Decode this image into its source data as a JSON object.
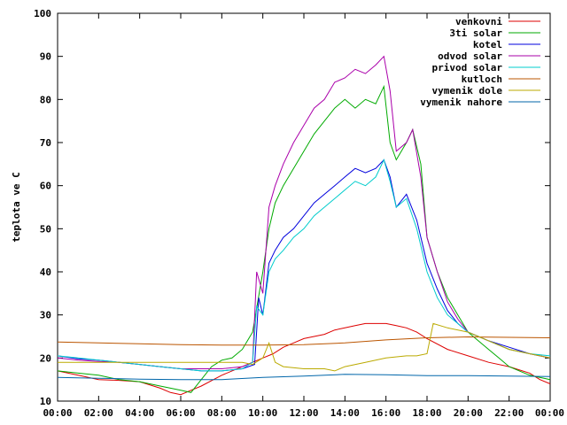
{
  "chart_data": {
    "type": "line",
    "title": "",
    "xlabel": "",
    "ylabel": "teplota ve C",
    "xlim": [
      0,
      24
    ],
    "ylim": [
      10,
      100
    ],
    "xticks": [
      {
        "v": 0,
        "label": "00:00"
      },
      {
        "v": 2,
        "label": "02:00"
      },
      {
        "v": 4,
        "label": "04:00"
      },
      {
        "v": 6,
        "label": "06:00"
      },
      {
        "v": 8,
        "label": "08:00"
      },
      {
        "v": 10,
        "label": "10:00"
      },
      {
        "v": 12,
        "label": "12:00"
      },
      {
        "v": 14,
        "label": "14:00"
      },
      {
        "v": 16,
        "label": "16:00"
      },
      {
        "v": 18,
        "label": "18:00"
      },
      {
        "v": 20,
        "label": "20:00"
      },
      {
        "v": 22,
        "label": "22:00"
      },
      {
        "v": 24,
        "label": "00:00"
      }
    ],
    "yticks": [
      {
        "v": 10,
        "label": "10"
      },
      {
        "v": 20,
        "label": "20"
      },
      {
        "v": 30,
        "label": "30"
      },
      {
        "v": 40,
        "label": "40"
      },
      {
        "v": 50,
        "label": "50"
      },
      {
        "v": 60,
        "label": "60"
      },
      {
        "v": 70,
        "label": "70"
      },
      {
        "v": 80,
        "label": "80"
      },
      {
        "v": 90,
        "label": "90"
      },
      {
        "v": 100,
        "label": "100"
      }
    ],
    "grid": false,
    "legend_position": "top-right",
    "series": [
      {
        "name": "venkovni",
        "color": "#dd0000",
        "points": [
          [
            0,
            17
          ],
          [
            1,
            16
          ],
          [
            2,
            15
          ],
          [
            3,
            14.8
          ],
          [
            4,
            14.5
          ],
          [
            5,
            13
          ],
          [
            5.5,
            12
          ],
          [
            6,
            11.5
          ],
          [
            6.5,
            12.5
          ],
          [
            7,
            13.5
          ],
          [
            8,
            16
          ],
          [
            9,
            18
          ],
          [
            9.5,
            19
          ],
          [
            10,
            20
          ],
          [
            10.5,
            21
          ],
          [
            11,
            22.5
          ],
          [
            11.5,
            23.5
          ],
          [
            12,
            24.5
          ],
          [
            12.5,
            25
          ],
          [
            13,
            25.5
          ],
          [
            13.5,
            26.5
          ],
          [
            14,
            27
          ],
          [
            14.5,
            27.5
          ],
          [
            15,
            28
          ],
          [
            15.5,
            28
          ],
          [
            16,
            28
          ],
          [
            16.5,
            27.5
          ],
          [
            17,
            27
          ],
          [
            17.5,
            26
          ],
          [
            18,
            24.5
          ],
          [
            19,
            22
          ],
          [
            20,
            20.5
          ],
          [
            21,
            19
          ],
          [
            22,
            18
          ],
          [
            23,
            16.5
          ],
          [
            23.5,
            15
          ],
          [
            24,
            14
          ]
        ]
      },
      {
        "name": "3ti solar",
        "color": "#00aa00",
        "points": [
          [
            0,
            17
          ],
          [
            1,
            16.5
          ],
          [
            2,
            16
          ],
          [
            3,
            15
          ],
          [
            4,
            14.5
          ],
          [
            5,
            13.5
          ],
          [
            6,
            12.5
          ],
          [
            6.5,
            12
          ],
          [
            7,
            15
          ],
          [
            7.5,
            18
          ],
          [
            8,
            19.5
          ],
          [
            8.5,
            20
          ],
          [
            9,
            22
          ],
          [
            9.5,
            26
          ],
          [
            10,
            40
          ],
          [
            10.3,
            50
          ],
          [
            10.6,
            56
          ],
          [
            11,
            60
          ],
          [
            11.5,
            64
          ],
          [
            12,
            68
          ],
          [
            12.5,
            72
          ],
          [
            13,
            75
          ],
          [
            13.5,
            78
          ],
          [
            14,
            80
          ],
          [
            14.5,
            78
          ],
          [
            15,
            80
          ],
          [
            15.5,
            79
          ],
          [
            15.9,
            83
          ],
          [
            16.2,
            70
          ],
          [
            16.5,
            66
          ],
          [
            17,
            70
          ],
          [
            17.3,
            73
          ],
          [
            17.7,
            65
          ],
          [
            18,
            48
          ],
          [
            18.5,
            40
          ],
          [
            19,
            34
          ],
          [
            19.5,
            30
          ],
          [
            20,
            26
          ],
          [
            20.5,
            24
          ],
          [
            21,
            22
          ],
          [
            21.5,
            20
          ],
          [
            22,
            18
          ],
          [
            23,
            16
          ],
          [
            24,
            15
          ]
        ]
      },
      {
        "name": "kotel",
        "color": "#0000dd",
        "points": [
          [
            0,
            20.5
          ],
          [
            1,
            19.8
          ],
          [
            2,
            19.5
          ],
          [
            3,
            19
          ],
          [
            4,
            18.5
          ],
          [
            5,
            18
          ],
          [
            6,
            17.5
          ],
          [
            7,
            17
          ],
          [
            8,
            17
          ],
          [
            9,
            17.5
          ],
          [
            9.6,
            18.5
          ],
          [
            9.8,
            34
          ],
          [
            10,
            30
          ],
          [
            10.3,
            42
          ],
          [
            10.6,
            45
          ],
          [
            11,
            48
          ],
          [
            11.5,
            50
          ],
          [
            12,
            53
          ],
          [
            12.5,
            56
          ],
          [
            13,
            58
          ],
          [
            13.5,
            60
          ],
          [
            14,
            62
          ],
          [
            14.5,
            64
          ],
          [
            15,
            63
          ],
          [
            15.5,
            64
          ],
          [
            15.9,
            66
          ],
          [
            16.2,
            62
          ],
          [
            16.5,
            55
          ],
          [
            17,
            58
          ],
          [
            17.5,
            52
          ],
          [
            18,
            42
          ],
          [
            18.5,
            36
          ],
          [
            19,
            31
          ],
          [
            19.5,
            28
          ],
          [
            20,
            26
          ],
          [
            21,
            24
          ],
          [
            22,
            22.5
          ],
          [
            23,
            21
          ],
          [
            24,
            20
          ]
        ]
      },
      {
        "name": "odvod solar",
        "color": "#aa00aa",
        "points": [
          [
            0,
            20
          ],
          [
            1,
            19.5
          ],
          [
            2,
            19.2
          ],
          [
            3,
            19
          ],
          [
            4,
            18.5
          ],
          [
            5,
            18
          ],
          [
            6,
            17.5
          ],
          [
            7,
            17.5
          ],
          [
            8,
            17.5
          ],
          [
            9,
            18
          ],
          [
            9.5,
            19
          ],
          [
            9.7,
            40
          ],
          [
            10,
            35
          ],
          [
            10.3,
            55
          ],
          [
            10.6,
            60
          ],
          [
            11,
            65
          ],
          [
            11.5,
            70
          ],
          [
            12,
            74
          ],
          [
            12.5,
            78
          ],
          [
            13,
            80
          ],
          [
            13.5,
            84
          ],
          [
            14,
            85
          ],
          [
            14.5,
            87
          ],
          [
            15,
            86
          ],
          [
            15.5,
            88
          ],
          [
            15.9,
            90
          ],
          [
            16.2,
            82
          ],
          [
            16.5,
            68
          ],
          [
            17,
            70
          ],
          [
            17.3,
            73
          ],
          [
            17.7,
            62
          ],
          [
            18,
            48
          ],
          [
            18.5,
            40
          ],
          [
            19,
            33
          ],
          [
            19.5,
            29
          ],
          [
            20,
            26
          ],
          [
            21,
            24
          ],
          [
            22,
            22
          ],
          [
            23,
            21
          ],
          [
            24,
            20
          ]
        ]
      },
      {
        "name": "privod solar",
        "color": "#00cccc",
        "points": [
          [
            0,
            20.5
          ],
          [
            1,
            20
          ],
          [
            2,
            19.5
          ],
          [
            3,
            19
          ],
          [
            4,
            18.5
          ],
          [
            5,
            18
          ],
          [
            6,
            17.5
          ],
          [
            7,
            17
          ],
          [
            8,
            17
          ],
          [
            9,
            17.5
          ],
          [
            9.5,
            19
          ],
          [
            9.7,
            32
          ],
          [
            10,
            30
          ],
          [
            10.3,
            40
          ],
          [
            10.6,
            43
          ],
          [
            11,
            45
          ],
          [
            11.5,
            48
          ],
          [
            12,
            50
          ],
          [
            12.5,
            53
          ],
          [
            13,
            55
          ],
          [
            13.5,
            57
          ],
          [
            14,
            59
          ],
          [
            14.5,
            61
          ],
          [
            15,
            60
          ],
          [
            15.5,
            62
          ],
          [
            15.9,
            66
          ],
          [
            16.2,
            61
          ],
          [
            16.5,
            55
          ],
          [
            17,
            57
          ],
          [
            17.5,
            50
          ],
          [
            18,
            40
          ],
          [
            18.5,
            34
          ],
          [
            19,
            30
          ],
          [
            19.5,
            28
          ],
          [
            20,
            26
          ],
          [
            21,
            24
          ],
          [
            22,
            22
          ],
          [
            23,
            21
          ],
          [
            24,
            20.5
          ]
        ]
      },
      {
        "name": "kutloch",
        "color": "#bb5500",
        "points": [
          [
            0,
            23.7
          ],
          [
            2,
            23.5
          ],
          [
            4,
            23.3
          ],
          [
            6,
            23.1
          ],
          [
            8,
            23
          ],
          [
            10,
            23
          ],
          [
            12,
            23.1
          ],
          [
            14,
            23.5
          ],
          [
            16,
            24.2
          ],
          [
            18,
            24.7
          ],
          [
            20,
            24.9
          ],
          [
            22,
            24.8
          ],
          [
            24,
            24.7
          ]
        ]
      },
      {
        "name": "vymenik dole",
        "color": "#bbaa00",
        "points": [
          [
            0,
            19
          ],
          [
            2,
            19
          ],
          [
            4,
            19
          ],
          [
            6,
            19
          ],
          [
            8,
            19
          ],
          [
            9,
            19
          ],
          [
            9.5,
            18.5
          ],
          [
            10,
            20
          ],
          [
            10.3,
            23.5
          ],
          [
            10.6,
            19
          ],
          [
            11,
            18
          ],
          [
            12,
            17.5
          ],
          [
            13,
            17.5
          ],
          [
            13.5,
            17
          ],
          [
            14,
            18
          ],
          [
            15,
            19
          ],
          [
            16,
            20
          ],
          [
            17,
            20.5
          ],
          [
            17.5,
            20.5
          ],
          [
            18,
            21
          ],
          [
            18.3,
            28
          ],
          [
            19,
            27
          ],
          [
            20,
            26
          ],
          [
            21,
            24
          ],
          [
            22,
            22
          ],
          [
            23,
            21
          ],
          [
            24,
            20
          ]
        ]
      },
      {
        "name": "vymenik nahore",
        "color": "#0066aa",
        "points": [
          [
            0,
            15.5
          ],
          [
            2,
            15.3
          ],
          [
            4,
            15.1
          ],
          [
            6,
            15
          ],
          [
            8,
            15
          ],
          [
            10,
            15.5
          ],
          [
            12,
            15.8
          ],
          [
            14,
            16.2
          ],
          [
            16,
            16.1
          ],
          [
            18,
            15.9
          ],
          [
            20,
            15.9
          ],
          [
            22,
            15.8
          ],
          [
            24,
            15.7
          ]
        ]
      }
    ]
  }
}
